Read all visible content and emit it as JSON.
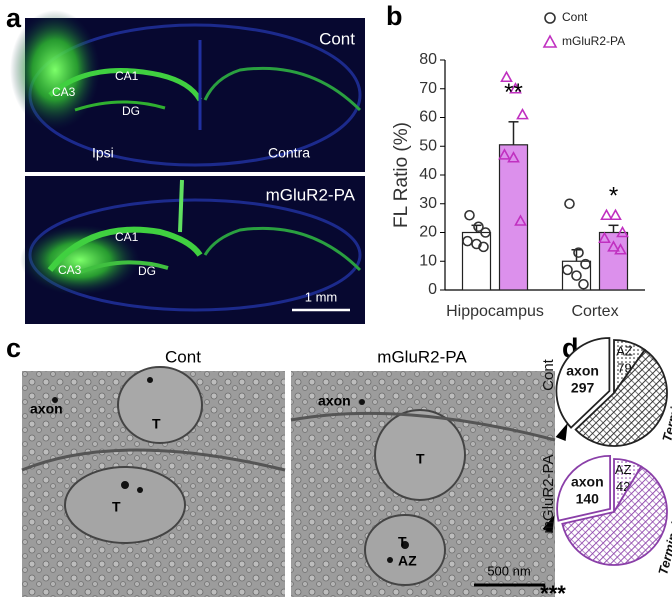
{
  "panel_labels": [
    "a",
    "b",
    "c",
    "d"
  ],
  "panel_a": {
    "top": {
      "condition": "Cont",
      "labels": [
        "CA1",
        "CA3",
        "DG",
        "Ipsi",
        "Contra"
      ]
    },
    "bottom": {
      "condition": "mGluR2-PA",
      "labels": [
        "CA1",
        "CA3",
        "DG"
      ],
      "scale_bar": "1 mm"
    }
  },
  "panel_c": {
    "left": {
      "title": "Cont",
      "labels": [
        "axon",
        "T",
        "T"
      ]
    },
    "right": {
      "title": "mGluR2-PA",
      "labels": [
        "axon",
        "T",
        "T",
        "AZ"
      ],
      "scale_bar": "500 nm"
    }
  },
  "chart_data": [
    {
      "type": "bar",
      "ylabel": "FL Ratio (%)",
      "categories": [
        "Hippocampus",
        "Cortex"
      ],
      "ylim": [
        0,
        80
      ],
      "yticks": [
        0,
        10,
        20,
        30,
        40,
        50,
        60,
        70,
        80
      ],
      "legend": "top-right",
      "series": [
        {
          "name": "Cont",
          "color": "#ffffff",
          "marker": "circle",
          "marker_color": "#333333",
          "values": [
            20,
            10
          ],
          "errors": [
            2.5,
            4
          ],
          "points": [
            [
              26,
              22,
              20,
              17,
              16,
              15
            ],
            [
              30,
              13,
              9,
              7,
              5,
              2
            ]
          ]
        },
        {
          "name": "mGluR2-PA",
          "color": "#dc90ec",
          "marker": "triangle",
          "marker_color": "#c030c0",
          "values": [
            50.5,
            20
          ],
          "errors": [
            8,
            2.5
          ],
          "significance": [
            "**",
            "*"
          ],
          "points": [
            [
              74,
              70,
              61,
              47,
              46,
              24
            ],
            [
              26,
              26,
              20,
              18,
              15,
              14
            ]
          ]
        }
      ]
    },
    {
      "type": "pie",
      "title": "Cont",
      "color": "#222222",
      "categories": [
        "axon",
        "AZ",
        "Terminal"
      ],
      "values": [
        297,
        79,
        424
      ]
    },
    {
      "type": "pie",
      "title": "mGluR2-PA",
      "color": "#8a3fa8",
      "annotation": "***",
      "categories": [
        "axon",
        "AZ",
        "Terminal"
      ],
      "values": [
        140,
        42,
        308
      ]
    }
  ]
}
